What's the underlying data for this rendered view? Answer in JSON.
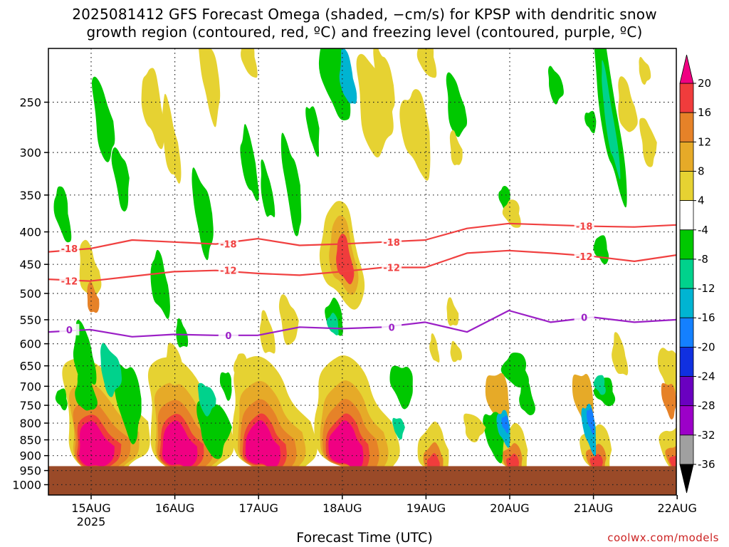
{
  "title": {
    "line1": "2025081412 GFS Forecast Omega (shaded, −cm/s) for KPSP with dendritic snow",
    "line2": "growth region (contoured, red, ºC) and freezing level (contoured, purple, ºC)"
  },
  "xlabel": "Forecast Time (UTC)",
  "credit": "coolwx.com/models",
  "chart_data": {
    "type": "heatmap",
    "xlabel": "Forecast Time (UTC)",
    "ylabel": "",
    "x_ticks": [
      {
        "label": "15AUG",
        "sub": "2025",
        "t": 0.5
      },
      {
        "label": "16AUG",
        "sub": "",
        "t": 1.5
      },
      {
        "label": "17AUG",
        "sub": "",
        "t": 2.5
      },
      {
        "label": "18AUG",
        "sub": "",
        "t": 3.5
      },
      {
        "label": "19AUG",
        "sub": "",
        "t": 4.5
      },
      {
        "label": "20AUG",
        "sub": "",
        "t": 5.5
      },
      {
        "label": "21AUG",
        "sub": "",
        "t": 6.5
      },
      {
        "label": "22AUG",
        "sub": "",
        "t": 7.5
      }
    ],
    "xlim": [
      0,
      7.5
    ],
    "y_ticks": [
      250,
      300,
      350,
      400,
      450,
      500,
      550,
      600,
      650,
      700,
      750,
      800,
      850,
      900,
      950,
      1000
    ],
    "ylim": [
      200,
      1050
    ],
    "y_scale": "log-pressure",
    "grid": true,
    "colorbar": {
      "levels": [
        -36,
        -32,
        -28,
        -24,
        -20,
        -16,
        -12,
        -8,
        -4,
        4,
        8,
        12,
        16,
        20
      ],
      "colors": [
        "#000000",
        "#a0a0a0",
        "#9c00c8",
        "#6a00c0",
        "#1030e0",
        "#1480ff",
        "#00b4d2",
        "#00d28c",
        "#00c800",
        "#ffffff",
        "#e6d232",
        "#e6aa28",
        "#e68228",
        "#f03c3c",
        "#f00082"
      ],
      "unit": "-cm/s"
    },
    "contours": [
      {
        "name": "-18",
        "color": "#f04040",
        "level": -18,
        "x": [
          0.0,
          0.5,
          1.0,
          1.5,
          2.0,
          2.5,
          3.0,
          3.5,
          4.0,
          4.5,
          5.0,
          5.5,
          6.0,
          6.5,
          7.0,
          7.5
        ],
        "p": [
          430,
          425,
          412,
          415,
          418,
          410,
          420,
          418,
          415,
          412,
          395,
          388,
          390,
          392,
          393,
          390
        ]
      },
      {
        "name": "-12",
        "color": "#f04040",
        "level": -12,
        "x": [
          0.0,
          0.5,
          1.0,
          1.5,
          2.0,
          2.5,
          3.0,
          3.5,
          4.0,
          4.5,
          5.0,
          5.5,
          6.0,
          6.5,
          7.0,
          7.5
        ],
        "p": [
          475,
          478,
          470,
          462,
          460,
          465,
          468,
          462,
          455,
          455,
          432,
          428,
          432,
          437,
          445,
          435
        ]
      },
      {
        "name": "0",
        "color": "#9b1fc6",
        "level": 0,
        "x": [
          0.0,
          0.5,
          1.0,
          1.5,
          2.0,
          2.5,
          3.0,
          3.5,
          4.0,
          4.5,
          5.0,
          5.5,
          6.0,
          6.5,
          7.0,
          7.5
        ],
        "p": [
          575,
          570,
          585,
          580,
          582,
          582,
          565,
          568,
          565,
          555,
          575,
          532,
          555,
          545,
          555,
          550
        ]
      }
    ],
    "ground": {
      "color": "#9a4a28",
      "from_hpa": 935
    }
  }
}
